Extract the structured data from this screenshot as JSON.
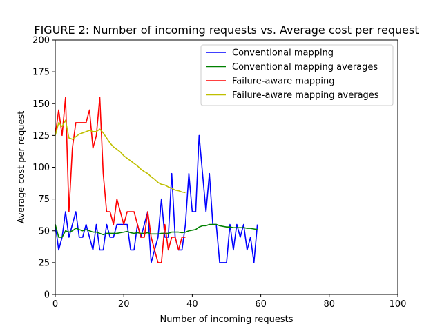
{
  "chart_data": {
    "type": "line",
    "title": "FIGURE 2: Number of incoming requests vs. Average cost per request",
    "xlabel": "Number of incoming requests",
    "ylabel": "Average cost per request",
    "xlim": [
      0,
      100
    ],
    "ylim": [
      0,
      200
    ],
    "xticks": [
      0,
      20,
      40,
      60,
      80,
      100
    ],
    "yticks": [
      0,
      25,
      50,
      75,
      100,
      125,
      150,
      175,
      200
    ],
    "grid": false,
    "legend_position": "top-right",
    "series": [
      {
        "name": "Conventional mapping",
        "color": "#0000ff",
        "x": [
          0,
          1,
          2,
          3,
          4,
          5,
          6,
          7,
          8,
          9,
          10,
          11,
          12,
          13,
          14,
          15,
          16,
          17,
          18,
          19,
          20,
          21,
          22,
          23,
          24,
          25,
          26,
          27,
          28,
          29,
          30,
          31,
          32,
          33,
          34,
          35,
          36,
          37,
          38,
          39,
          40,
          41,
          42,
          43,
          44,
          45,
          46,
          47,
          48,
          49,
          50,
          51,
          52,
          53,
          54,
          55,
          56,
          57,
          58,
          59
        ],
        "y": [
          55,
          35,
          45,
          65,
          45,
          55,
          65,
          45,
          45,
          55,
          45,
          35,
          55,
          35,
          35,
          55,
          45,
          45,
          55,
          55,
          55,
          55,
          35,
          35,
          55,
          45,
          55,
          65,
          25,
          35,
          45,
          75,
          45,
          45,
          95,
          45,
          35,
          35,
          55,
          95,
          65,
          65,
          125,
          95,
          65,
          95,
          55,
          55,
          25,
          25,
          25,
          55,
          35,
          55,
          45,
          55,
          35,
          45,
          25,
          55
        ]
      },
      {
        "name": "Conventional mapping averages",
        "color": "#008000",
        "x": [
          0,
          1,
          2,
          3,
          4,
          5,
          6,
          7,
          8,
          9,
          10,
          11,
          12,
          13,
          14,
          15,
          16,
          17,
          18,
          19,
          20,
          21,
          22,
          23,
          24,
          25,
          26,
          27,
          28,
          29,
          30,
          31,
          32,
          33,
          34,
          35,
          36,
          37,
          38,
          39,
          40,
          41,
          42,
          43,
          44,
          45,
          46,
          47,
          48,
          49,
          50,
          51,
          52,
          53,
          54,
          55,
          56,
          57,
          58,
          59
        ],
        "y": [
          55,
          45,
          45,
          50,
          49,
          50,
          52,
          51,
          50,
          51,
          50,
          49,
          49,
          48,
          47,
          48,
          48,
          48,
          48,
          48.5,
          49,
          49.5,
          48.5,
          48,
          48.5,
          48,
          48,
          48.5,
          47.5,
          47.5,
          47.5,
          48,
          48,
          48,
          49,
          49,
          49,
          48.5,
          49,
          50,
          50.5,
          51,
          53,
          54,
          54,
          55,
          55,
          55,
          54,
          53.5,
          53,
          53,
          52.5,
          52.5,
          52.5,
          52.5,
          52,
          52,
          51.5,
          51
        ]
      },
      {
        "name": "Failure-aware mapping",
        "color": "#ff0000",
        "x": [
          0,
          1,
          2,
          3,
          4,
          5,
          6,
          7,
          8,
          9,
          10,
          11,
          12,
          13,
          14,
          15,
          16,
          17,
          18,
          19,
          20,
          21,
          22,
          23,
          24,
          25,
          26,
          27,
          28,
          29,
          30,
          31,
          32,
          33,
          34,
          35,
          36,
          37,
          38
        ],
        "y": [
          125,
          145,
          125,
          155,
          65,
          115,
          135,
          135,
          135,
          135,
          145,
          115,
          125,
          155,
          95,
          65,
          65,
          55,
          75,
          65,
          55,
          65,
          65,
          65,
          55,
          45,
          45,
          65,
          45,
          35,
          25,
          25,
          55,
          35,
          45,
          45,
          35,
          45,
          45
        ]
      },
      {
        "name": "Failure-aware mapping averages",
        "color": "#bfbf00",
        "x": [
          0,
          1,
          2,
          3,
          4,
          5,
          6,
          7,
          8,
          9,
          10,
          11,
          12,
          13,
          14,
          15,
          16,
          17,
          18,
          19,
          20,
          21,
          22,
          23,
          24,
          25,
          26,
          27,
          28,
          29,
          30,
          31,
          32,
          33,
          34,
          35,
          36,
          37,
          38
        ],
        "y": [
          125,
          135,
          132,
          137,
          123,
          122,
          124,
          126,
          127,
          128,
          129,
          128,
          128,
          130,
          127,
          123,
          119,
          116,
          114,
          112,
          109,
          107,
          105,
          103,
          101,
          98.5,
          96.5,
          95,
          92.5,
          90.5,
          88,
          86.5,
          86,
          84.5,
          83.5,
          82,
          81.5,
          80.5,
          80
        ]
      }
    ]
  }
}
